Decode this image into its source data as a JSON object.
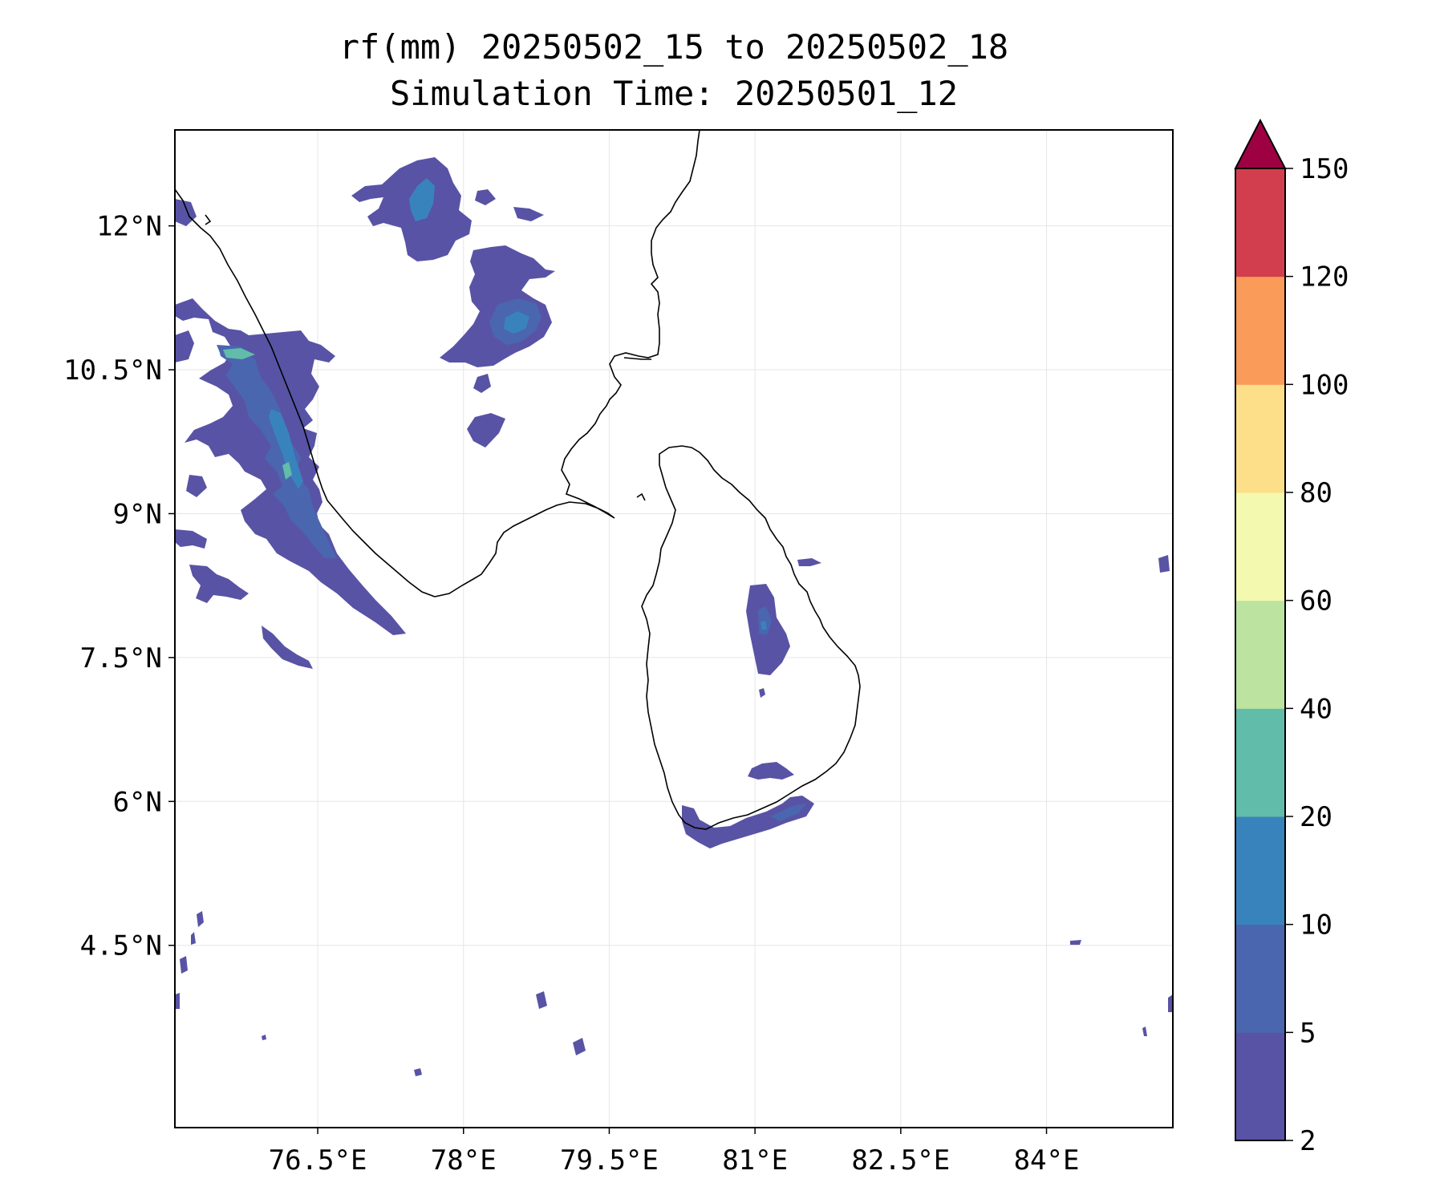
{
  "title": {
    "line1": "rf(mm) 20250502_15 to 20250502_18",
    "line2": "Simulation Time: 20250501_12"
  },
  "map": {
    "lon_range": [
      75.03,
      85.3
    ],
    "lat_range": [
      2.6,
      13.0
    ],
    "x_ticks": [
      {
        "value": 76.5,
        "label": "76.5°E"
      },
      {
        "value": 78.0,
        "label": "78°E"
      },
      {
        "value": 79.5,
        "label": "79.5°E"
      },
      {
        "value": 81.0,
        "label": "81°E"
      },
      {
        "value": 82.5,
        "label": "82.5°E"
      },
      {
        "value": 84.0,
        "label": "84°E"
      }
    ],
    "y_ticks": [
      {
        "value": 12.0,
        "label": "12°N"
      },
      {
        "value": 10.5,
        "label": "10.5°N"
      },
      {
        "value": 9.0,
        "label": "9°N"
      },
      {
        "value": 7.5,
        "label": "7.5°N"
      },
      {
        "value": 6.0,
        "label": "6°N"
      },
      {
        "value": 4.5,
        "label": "4.5°N"
      }
    ],
    "grid": true
  },
  "colorbar": {
    "levels": [
      {
        "label": "2"
      },
      {
        "label": "5"
      },
      {
        "label": "10"
      },
      {
        "label": "20"
      },
      {
        "label": "40"
      },
      {
        "label": "60"
      },
      {
        "label": "80"
      },
      {
        "label": "100"
      },
      {
        "label": "120"
      },
      {
        "label": "150"
      }
    ],
    "colors": [
      "#5853a5",
      "#4a66ae",
      "#3983bd",
      "#61bca9",
      "#bde3a0",
      "#f3f9ae",
      "#fdde89",
      "#fa9b5a",
      "#d33e4e"
    ],
    "extend_color": "#9d0142"
  }
}
